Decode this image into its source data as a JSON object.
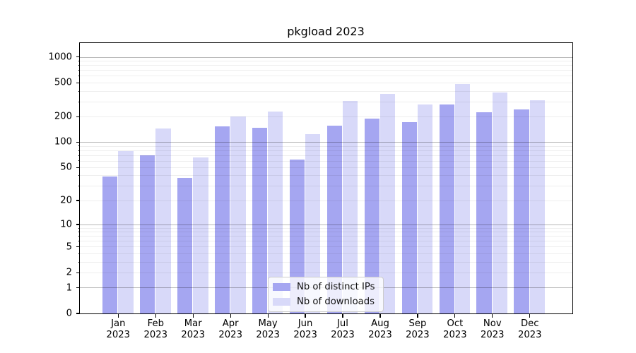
{
  "chart_data": {
    "type": "bar",
    "title": "pkgload 2023",
    "months": [
      "Jan",
      "Feb",
      "Mar",
      "Apr",
      "May",
      "Jun",
      "Jul",
      "Aug",
      "Sep",
      "Oct",
      "Nov",
      "Dec"
    ],
    "year": "2023",
    "categories": [
      "Jan 2023",
      "Feb 2023",
      "Mar 2023",
      "Apr 2023",
      "May 2023",
      "Jun 2023",
      "Jul 2023",
      "Aug 2023",
      "Sep 2023",
      "Oct 2023",
      "Nov 2023",
      "Dec 2023"
    ],
    "series": [
      {
        "name": "Nb of distinct IPs",
        "color": "#a5a6f1",
        "values": [
          39,
          69,
          37,
          153,
          148,
          62,
          157,
          189,
          170,
          277,
          225,
          241
        ]
      },
      {
        "name": "Nb of downloads",
        "color": "#d8d9f9",
        "values": [
          78,
          144,
          66,
          200,
          227,
          124,
          302,
          371,
          277,
          480,
          379,
          308
        ]
      }
    ],
    "xlabel": "",
    "ylabel": "",
    "yscale": "log1p",
    "yticks": [
      0,
      1,
      2,
      5,
      10,
      20,
      50,
      100,
      200,
      500,
      1000
    ],
    "ylim": [
      0,
      1460
    ],
    "grid": true,
    "grid_major_decades": [
      1,
      10,
      100,
      1000
    ],
    "legend": {
      "position": "lower center"
    }
  }
}
